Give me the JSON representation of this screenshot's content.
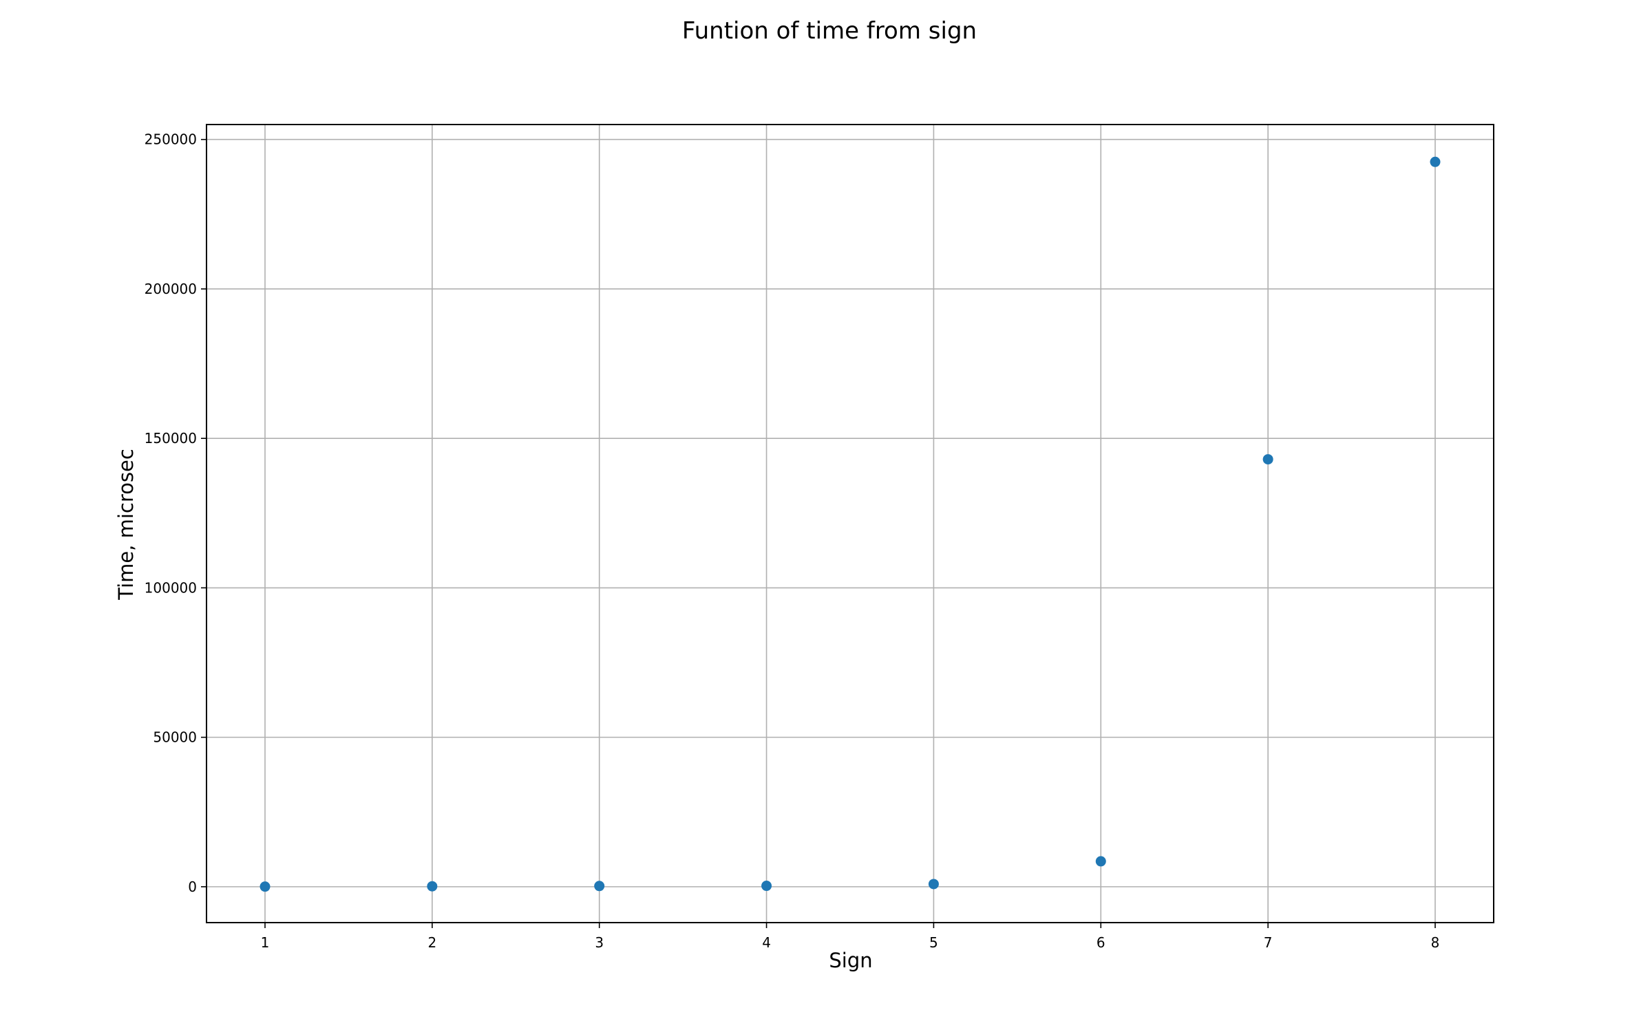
{
  "chart_data": {
    "type": "scatter",
    "title": "Funtion of time from sign",
    "xlabel": "Sign",
    "ylabel": "Time, microsec",
    "x": [
      1,
      2,
      3,
      4,
      5,
      6,
      7,
      8
    ],
    "y": [
      50,
      150,
      250,
      300,
      900,
      8500,
      143000,
      242500
    ],
    "xlim": [
      0.65,
      8.35
    ],
    "ylim": [
      -12000,
      255000
    ],
    "xticks": [
      1,
      2,
      3,
      4,
      5,
      6,
      7,
      8
    ],
    "yticks": [
      0,
      50000,
      100000,
      150000,
      200000,
      250000
    ],
    "xtick_labels": [
      "1",
      "2",
      "3",
      "4",
      "5",
      "6",
      "7",
      "8"
    ],
    "ytick_labels": [
      "0",
      "50000",
      "100000",
      "150000",
      "200000",
      "250000"
    ],
    "grid": true,
    "marker_color": "#1f77b4"
  }
}
